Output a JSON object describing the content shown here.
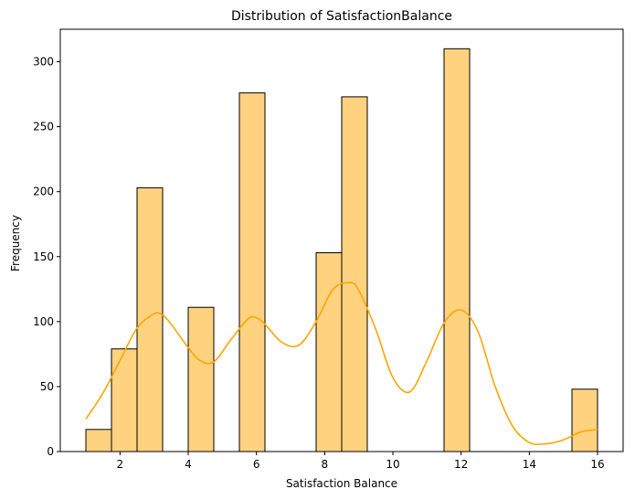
{
  "chart_data": {
    "type": "bar",
    "title": "Distribution of SatisfactionBalance",
    "xlabel": "Satisfaction Balance",
    "ylabel": "Frequency",
    "xlim": [
      0.25,
      16.75
    ],
    "ylim": [
      0,
      325
    ],
    "xticks": [
      2,
      4,
      6,
      8,
      10,
      12,
      14,
      16
    ],
    "yticks": [
      0,
      50,
      100,
      150,
      200,
      250,
      300
    ],
    "bar_color": "#ffd280",
    "bar_edge_color": "#000000",
    "kde_color": "#ffa500",
    "bins": [
      {
        "x0": 1.0,
        "x1": 1.75,
        "count": 17
      },
      {
        "x0": 1.75,
        "x1": 2.5,
        "count": 79
      },
      {
        "x0": 2.5,
        "x1": 3.25,
        "count": 203
      },
      {
        "x0": 3.25,
        "x1": 4.0,
        "count": 0
      },
      {
        "x0": 4.0,
        "x1": 4.75,
        "count": 111
      },
      {
        "x0": 4.75,
        "x1": 5.5,
        "count": 0
      },
      {
        "x0": 5.5,
        "x1": 6.25,
        "count": 276
      },
      {
        "x0": 6.25,
        "x1": 7.0,
        "count": 0
      },
      {
        "x0": 7.0,
        "x1": 7.75,
        "count": 0
      },
      {
        "x0": 7.75,
        "x1": 8.5,
        "count": 153
      },
      {
        "x0": 8.5,
        "x1": 9.25,
        "count": 273
      },
      {
        "x0": 9.25,
        "x1": 10.0,
        "count": 0
      },
      {
        "x0": 10.0,
        "x1": 10.75,
        "count": 0
      },
      {
        "x0": 10.75,
        "x1": 11.5,
        "count": 0
      },
      {
        "x0": 11.5,
        "x1": 12.25,
        "count": 310
      },
      {
        "x0": 12.25,
        "x1": 13.0,
        "count": 0
      },
      {
        "x0": 13.0,
        "x1": 13.75,
        "count": 0
      },
      {
        "x0": 13.75,
        "x1": 14.5,
        "count": 0
      },
      {
        "x0": 14.5,
        "x1": 15.25,
        "count": 0
      },
      {
        "x0": 15.25,
        "x1": 16.0,
        "count": 48
      }
    ],
    "kde": {
      "x": [
        1.0,
        1.5,
        2.0,
        2.5,
        3.0,
        3.25,
        3.5,
        4.0,
        4.35,
        4.75,
        5.25,
        5.75,
        6.0,
        6.25,
        6.75,
        7.25,
        7.75,
        8.25,
        8.75,
        9.0,
        9.5,
        10.0,
        10.5,
        11.0,
        11.5,
        12.0,
        12.5,
        13.0,
        13.5,
        14.0,
        14.5,
        15.0,
        15.5,
        16.0
      ],
      "y": [
        25,
        45,
        70,
        95,
        106,
        105,
        98,
        80,
        70,
        69,
        86,
        102,
        103,
        98,
        84,
        82,
        100,
        125,
        130,
        124,
        94,
        57,
        46,
        70,
        99,
        109,
        92,
        50,
        20,
        7,
        6,
        9,
        15,
        17
      ]
    }
  }
}
